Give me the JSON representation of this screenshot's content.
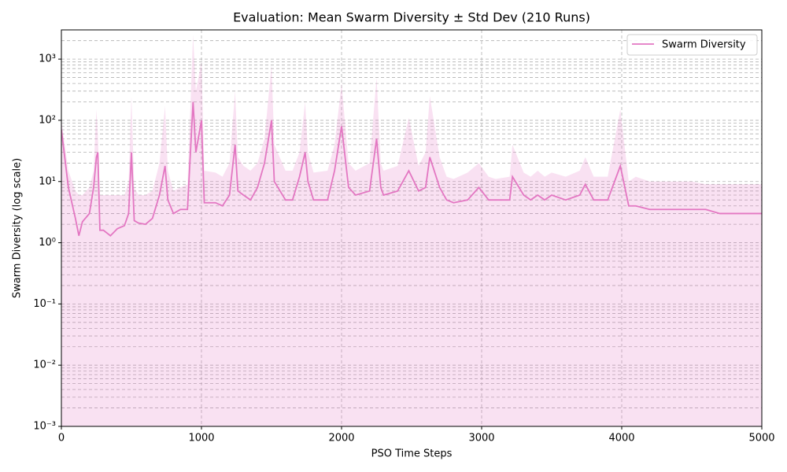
{
  "chart_data": {
    "type": "line",
    "title": "Evaluation: Mean Swarm Diversity ± Std Dev (210 Runs)",
    "x_label": "PSO Time Steps",
    "y_label": "Swarm Diversity (log scale)",
    "log_y": true,
    "grid": true,
    "minor_grid": true,
    "legend": "upper right",
    "xlim": [
      0,
      5000
    ],
    "xticks": [
      0,
      1000,
      2000,
      3000,
      4000,
      5000
    ],
    "ylim": [
      0.001,
      3000
    ],
    "yticks": [
      {
        "value": 0.001,
        "label": "10⁻³"
      },
      {
        "value": 0.01,
        "label": "10⁻²"
      },
      {
        "value": 0.1,
        "label": "10⁻¹"
      },
      {
        "value": 1,
        "label": "10⁰"
      },
      {
        "value": 10,
        "label": "10¹"
      },
      {
        "value": 100,
        "label": "10²"
      },
      {
        "value": 1000,
        "label": "10³"
      }
    ],
    "x": [
      0,
      50,
      100,
      125,
      150,
      200,
      230,
      250,
      260,
      275,
      300,
      350,
      400,
      450,
      480,
      500,
      520,
      550,
      600,
      650,
      700,
      740,
      760,
      800,
      850,
      900,
      940,
      960,
      1000,
      1020,
      1100,
      1150,
      1200,
      1240,
      1260,
      1300,
      1350,
      1400,
      1450,
      1500,
      1520,
      1600,
      1650,
      1700,
      1740,
      1760,
      1800,
      1900,
      1950,
      2000,
      2050,
      2100,
      2200,
      2250,
      2280,
      2300,
      2400,
      2480,
      2550,
      2600,
      2630,
      2700,
      2750,
      2800,
      2900,
      2980,
      3050,
      3100,
      3200,
      3220,
      3300,
      3350,
      3400,
      3450,
      3500,
      3600,
      3700,
      3740,
      3800,
      3900,
      3990,
      4050,
      4100,
      4200,
      4300,
      4400,
      4500,
      4600,
      4700,
      4800,
      4900,
      5000
    ],
    "series": [
      {
        "name": "Swarm Diversity",
        "color": "#e377c2",
        "values": [
          70,
          8,
          2.5,
          1.3,
          2.2,
          3,
          8,
          25,
          30,
          1.6,
          1.6,
          1.3,
          1.7,
          1.9,
          3,
          30,
          2.3,
          2.1,
          2,
          2.5,
          6,
          18,
          5,
          3,
          3.5,
          3.5,
          200,
          30,
          100,
          4.5,
          4.5,
          4,
          6,
          40,
          7,
          6,
          5,
          8,
          20,
          100,
          10,
          5,
          5,
          12,
          30,
          10,
          5,
          5,
          15,
          80,
          8,
          6,
          7,
          50,
          8,
          6,
          7,
          15,
          7,
          8,
          25,
          8,
          5,
          4.5,
          5,
          8,
          5,
          5,
          5,
          12,
          6,
          5,
          6,
          5,
          6,
          5,
          6,
          9,
          5,
          5,
          18,
          4,
          4,
          3.5,
          3.5,
          3.5,
          3.5,
          3.5,
          3,
          3,
          3,
          3
        ],
        "upper": [
          100,
          15,
          7,
          6,
          6,
          8,
          15,
          150,
          60,
          6,
          6,
          6,
          6,
          6,
          10,
          250,
          8,
          6,
          6,
          7,
          20,
          170,
          15,
          7,
          8,
          9,
          2500,
          300,
          900,
          15,
          14,
          12,
          20,
          300,
          25,
          18,
          15,
          20,
          50,
          800,
          40,
          15,
          15,
          30,
          200,
          30,
          14,
          15,
          40,
          400,
          20,
          15,
          20,
          500,
          20,
          15,
          18,
          110,
          18,
          30,
          250,
          25,
          12,
          11,
          14,
          20,
          12,
          11,
          12,
          40,
          14,
          12,
          15,
          12,
          14,
          12,
          15,
          25,
          12,
          12,
          150,
          10,
          12,
          10,
          10,
          10,
          10,
          9,
          9,
          9,
          9,
          9
        ]
      }
    ]
  }
}
